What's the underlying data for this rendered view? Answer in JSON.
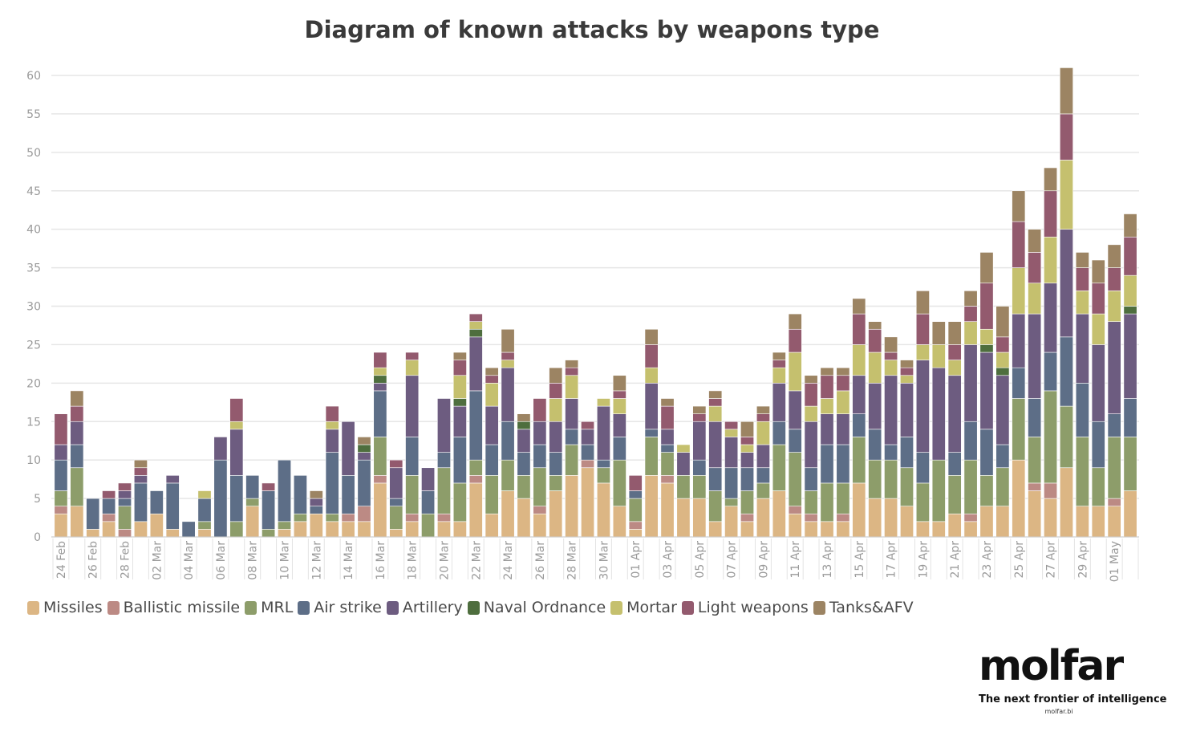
{
  "chart_data": {
    "type": "bar",
    "stacked": true,
    "title": "Diagram of known attacks by weapons type",
    "xlabel": "",
    "ylabel": "",
    "ylim": [
      0,
      60
    ],
    "yticks": [
      0,
      5,
      10,
      15,
      20,
      25,
      30,
      35,
      40,
      45,
      50,
      55,
      60
    ],
    "grid": true,
    "legend_position": "bottom-left",
    "categories": [
      "24 Feb",
      "25 Feb",
      "26 Feb",
      "27 Feb",
      "28 Feb",
      "01 Mar",
      "02 Mar",
      "03 Mar",
      "04 Mar",
      "05 Mar",
      "06 Mar",
      "07 Mar",
      "08 Mar",
      "09 Mar",
      "10 Mar",
      "11 Mar",
      "12 Mar",
      "13 Mar",
      "14 Mar",
      "15 Mar",
      "16 Mar",
      "17 Mar",
      "18 Mar",
      "19 Mar",
      "20 Mar",
      "21 Mar",
      "22 Mar",
      "23 Mar",
      "24 Mar",
      "25 Mar",
      "26 Mar",
      "27 Mar",
      "28 Mar",
      "29 Mar",
      "30 Mar",
      "31 Mar",
      "01 Apr",
      "02 Apr",
      "03 Apr",
      "04 Apr",
      "05 Apr",
      "06 Apr",
      "07 Apr",
      "08 Apr",
      "09 Apr",
      "10 Apr",
      "11 Apr",
      "12 Apr",
      "13 Apr",
      "14 Apr",
      "15 Apr",
      "16 Apr",
      "17 Apr",
      "18 Apr",
      "19 Apr",
      "20 Apr",
      "21 Apr",
      "22 Apr",
      "23 Apr",
      "24 Apr",
      "25 Apr",
      "26 Apr",
      "27 Apr",
      "28 Apr",
      "29 Apr",
      "30 Apr",
      "01 May",
      "02 May"
    ],
    "tick_labels": [
      "24 Feb",
      "",
      "26 Feb",
      "",
      "28 Feb",
      "",
      "02 Mar",
      "",
      "04 Mar",
      "",
      "06 Mar",
      "",
      "08 Mar",
      "",
      "10 Mar",
      "",
      "12 Mar",
      "",
      "14 Mar",
      "",
      "16 Mar",
      "",
      "18 Mar",
      "",
      "20 Mar",
      "",
      "22 Mar",
      "",
      "24 Mar",
      "",
      "26 Mar",
      "",
      "28 Mar",
      "",
      "30 Mar",
      "",
      "01 Apr",
      "",
      "03 Apr",
      "",
      "05 Apr",
      "",
      "07 Apr",
      "",
      "09 Apr",
      "",
      "11 Apr",
      "",
      "13 Apr",
      "",
      "15 Apr",
      "",
      "17 Apr",
      "",
      "19 Apr",
      "",
      "21 Apr",
      "",
      "23 Apr",
      "",
      "25 Apr",
      "",
      "27 Apr",
      "",
      "29 Apr",
      "",
      "01 May",
      ""
    ],
    "series": [
      {
        "name": "Missiles",
        "color": "#dcb684",
        "values": [
          3,
          4,
          1,
          2,
          0,
          2,
          3,
          1,
          0,
          1,
          0,
          0,
          4,
          0,
          1,
          2,
          3,
          2,
          2,
          2,
          7,
          1,
          2,
          0,
          2,
          2,
          7,
          3,
          6,
          5,
          3,
          6,
          8,
          9,
          7,
          4,
          1,
          8,
          7,
          5,
          5,
          2,
          4,
          2,
          5,
          6,
          3,
          2,
          2,
          2,
          7,
          5,
          5,
          4,
          2,
          2,
          3,
          2,
          4,
          4,
          10,
          6,
          5,
          9,
          4,
          4,
          4,
          6
        ]
      },
      {
        "name": "Ballistic missile",
        "color": "#bc8a84",
        "values": [
          1,
          0,
          0,
          1,
          1,
          0,
          0,
          0,
          0,
          0,
          0,
          0,
          0,
          0,
          0,
          0,
          0,
          0,
          1,
          2,
          1,
          0,
          1,
          0,
          1,
          0,
          1,
          0,
          0,
          0,
          1,
          0,
          0,
          1,
          0,
          0,
          1,
          0,
          1,
          0,
          0,
          0,
          0,
          1,
          0,
          0,
          1,
          1,
          0,
          1,
          0,
          0,
          0,
          0,
          0,
          0,
          0,
          1,
          0,
          0,
          0,
          1,
          2,
          0,
          0,
          0,
          1,
          0
        ]
      },
      {
        "name": "MRL",
        "color": "#8d9d6a",
        "values": [
          2,
          5,
          0,
          0,
          3,
          0,
          0,
          0,
          0,
          1,
          0,
          2,
          1,
          1,
          1,
          1,
          0,
          1,
          0,
          0,
          5,
          3,
          5,
          3,
          6,
          5,
          2,
          5,
          4,
          3,
          5,
          2,
          4,
          0,
          2,
          6,
          3,
          5,
          3,
          3,
          3,
          4,
          1,
          3,
          2,
          6,
          7,
          3,
          5,
          4,
          6,
          5,
          5,
          5,
          5,
          8,
          5,
          7,
          4,
          5,
          8,
          6,
          12,
          8,
          9,
          5,
          8,
          7
        ]
      },
      {
        "name": "Air strike",
        "color": "#5d6e87",
        "values": [
          4,
          3,
          4,
          2,
          1,
          5,
          3,
          6,
          2,
          3,
          10,
          6,
          3,
          5,
          8,
          5,
          1,
          8,
          5,
          6,
          6,
          1,
          5,
          3,
          2,
          6,
          9,
          4,
          5,
          3,
          3,
          3,
          2,
          2,
          1,
          3,
          1,
          1,
          1,
          0,
          2,
          3,
          4,
          3,
          2,
          3,
          3,
          3,
          5,
          5,
          3,
          4,
          2,
          4,
          4,
          0,
          3,
          5,
          6,
          3,
          4,
          5,
          5,
          9,
          7,
          6,
          3,
          5
        ]
      },
      {
        "name": "Artillery",
        "color": "#6d5c80",
        "values": [
          2,
          3,
          0,
          0,
          1,
          1,
          0,
          1,
          0,
          0,
          3,
          6,
          0,
          0,
          0,
          0,
          1,
          3,
          7,
          1,
          1,
          4,
          8,
          3,
          7,
          4,
          7,
          5,
          7,
          3,
          3,
          4,
          4,
          2,
          7,
          3,
          0,
          6,
          2,
          3,
          5,
          6,
          4,
          2,
          3,
          5,
          5,
          6,
          4,
          4,
          5,
          6,
          9,
          7,
          12,
          12,
          10,
          10,
          10,
          9,
          7,
          11,
          9,
          14,
          9,
          10,
          12,
          11
        ]
      },
      {
        "name": "Naval Ordnance",
        "color": "#4e6e3e",
        "values": [
          0,
          0,
          0,
          0,
          0,
          0,
          0,
          0,
          0,
          0,
          0,
          0,
          0,
          0,
          0,
          0,
          0,
          0,
          0,
          1,
          1,
          0,
          0,
          0,
          0,
          1,
          1,
          0,
          0,
          1,
          0,
          0,
          0,
          0,
          0,
          0,
          0,
          0,
          0,
          0,
          0,
          0,
          0,
          0,
          0,
          0,
          0,
          0,
          0,
          0,
          0,
          0,
          0,
          0,
          0,
          0,
          0,
          0,
          1,
          1,
          0,
          0,
          0,
          0,
          0,
          0,
          0,
          1
        ]
      },
      {
        "name": "Mortar",
        "color": "#c5c06e",
        "values": [
          0,
          0,
          0,
          0,
          0,
          0,
          0,
          0,
          0,
          1,
          0,
          1,
          0,
          0,
          0,
          0,
          0,
          1,
          0,
          0,
          1,
          0,
          2,
          0,
          0,
          3,
          1,
          3,
          1,
          0,
          0,
          3,
          3,
          0,
          1,
          2,
          0,
          2,
          0,
          1,
          0,
          2,
          1,
          1,
          3,
          2,
          5,
          2,
          2,
          3,
          4,
          4,
          2,
          1,
          2,
          3,
          2,
          3,
          2,
          2,
          6,
          4,
          6,
          9,
          3,
          4,
          4,
          4
        ]
      },
      {
        "name": "Light weapons",
        "color": "#935a6e",
        "values": [
          4,
          2,
          0,
          1,
          1,
          1,
          0,
          0,
          0,
          0,
          0,
          3,
          0,
          1,
          0,
          0,
          0,
          2,
          0,
          0,
          2,
          1,
          1,
          0,
          0,
          2,
          1,
          1,
          1,
          0,
          3,
          2,
          1,
          1,
          0,
          1,
          2,
          3,
          3,
          0,
          1,
          1,
          1,
          1,
          1,
          1,
          3,
          3,
          3,
          2,
          4,
          3,
          1,
          1,
          4,
          0,
          2,
          2,
          6,
          2,
          6,
          4,
          6,
          6,
          3,
          4,
          3,
          5
        ]
      },
      {
        "name": "Tanks&AFV",
        "color": "#9c8463",
        "values": [
          0,
          2,
          0,
          0,
          0,
          1,
          0,
          0,
          0,
          0,
          0,
          0,
          0,
          0,
          0,
          0,
          1,
          0,
          0,
          1,
          0,
          0,
          0,
          0,
          0,
          1,
          0,
          1,
          3,
          1,
          0,
          2,
          1,
          0,
          0,
          2,
          0,
          2,
          1,
          0,
          1,
          1,
          0,
          2,
          1,
          1,
          2,
          1,
          1,
          1,
          2,
          1,
          2,
          1,
          3,
          3,
          3,
          2,
          4,
          4,
          4,
          3,
          3,
          6,
          2,
          3,
          3,
          3
        ]
      }
    ]
  },
  "legend": {
    "items": [
      {
        "label": "Missiles",
        "color": "#dcb684"
      },
      {
        "label": "Ballistic missile",
        "color": "#bc8a84"
      },
      {
        "label": "MRL",
        "color": "#8d9d6a"
      },
      {
        "label": "Air strike",
        "color": "#5d6e87"
      },
      {
        "label": "Artillery",
        "color": "#6d5c80"
      },
      {
        "label": "Naval Ordnance",
        "color": "#4e6e3e"
      },
      {
        "label": "Mortar",
        "color": "#c5c06e"
      },
      {
        "label": "Light weapons",
        "color": "#935a6e"
      },
      {
        "label": "Tanks&AFV",
        "color": "#9c8463"
      }
    ]
  },
  "branding": {
    "logo": "molfar",
    "tagline": "The next frontier of intelligence",
    "url": "molfar.bi"
  }
}
